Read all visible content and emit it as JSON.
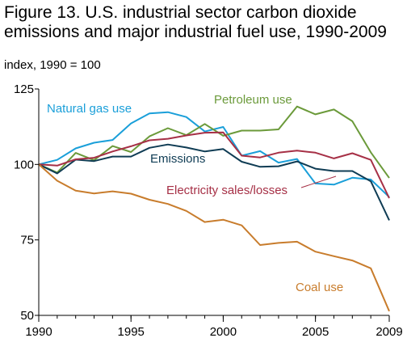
{
  "chart_data": {
    "type": "line",
    "title": "Figure 13. U.S. industrial sector carbon dioxide emissions and major industrial fuel use, 1990-2009",
    "subtitle": "index, 1990 = 100",
    "x": [
      1990,
      1991,
      1992,
      1993,
      1994,
      1995,
      1996,
      1997,
      1998,
      1999,
      2000,
      2001,
      2002,
      2003,
      2004,
      2005,
      2006,
      2007,
      2008,
      2009
    ],
    "xticks": [
      1990,
      1995,
      2000,
      2005,
      2009
    ],
    "yticks": [
      50,
      75,
      100,
      125
    ],
    "xlim": [
      1990,
      2009
    ],
    "ylim": [
      50,
      125
    ],
    "grid": false,
    "series": [
      {
        "name": "Natural gas use",
        "color": "#1a9fd9",
        "values": [
          100,
          101.5,
          105.3,
          107.2,
          108.1,
          113.6,
          116.9,
          117.3,
          115.7,
          110.9,
          112.4,
          102.9,
          104.4,
          100.6,
          101.8,
          93.7,
          93.3,
          95.6,
          95.0,
          89.2
        ]
      },
      {
        "name": "Petroleum use",
        "color": "#6b9a3a",
        "values": [
          100,
          97.3,
          103.8,
          101.4,
          106.1,
          104.1,
          109.3,
          112.0,
          109.7,
          113.4,
          109.5,
          111.2,
          111.2,
          111.6,
          119.2,
          116.6,
          118.2,
          114.3,
          104.0,
          95.5
        ]
      },
      {
        "name": "Emissions",
        "color": "#0f3c54",
        "values": [
          100,
          97.0,
          101.6,
          101.1,
          102.6,
          102.6,
          105.5,
          106.6,
          105.6,
          104.3,
          105.1,
          100.9,
          99.2,
          99.4,
          101.0,
          98.6,
          97.8,
          97.8,
          94.4,
          81.5
        ]
      },
      {
        "name": "Electricity sales/losses",
        "color": "#a63046",
        "values": [
          100,
          99.6,
          101.7,
          102.2,
          104.3,
          106.0,
          108.0,
          108.5,
          109.6,
          110.5,
          110.6,
          102.9,
          102.3,
          103.9,
          104.6,
          103.9,
          102.0,
          103.7,
          101.5,
          88.8
        ]
      },
      {
        "name": "Coal use",
        "color": "#c87c2c",
        "values": [
          100,
          94.6,
          91.3,
          90.4,
          91.1,
          90.3,
          88.3,
          86.9,
          84.6,
          80.9,
          81.7,
          79.8,
          73.3,
          74.0,
          74.4,
          71.1,
          69.6,
          68.2,
          65.6,
          51.4
        ]
      }
    ]
  }
}
